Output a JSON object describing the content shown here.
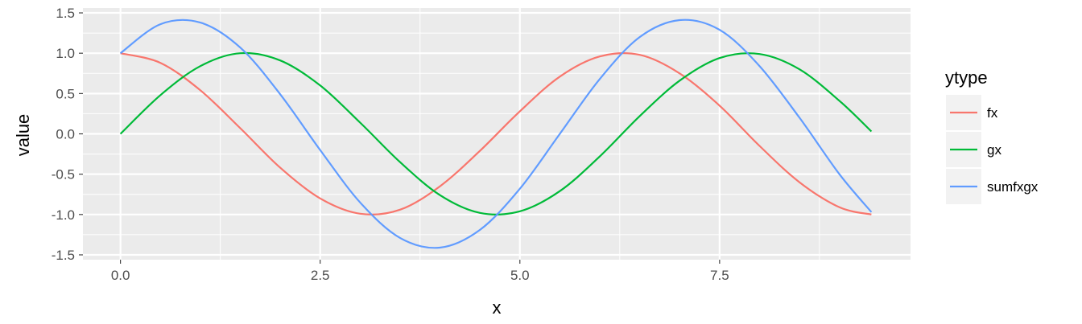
{
  "chart_data": {
    "type": "line",
    "title": "",
    "xlabel": "x",
    "ylabel": "value",
    "xlim": [
      -0.47,
      9.89
    ],
    "ylim": [
      -1.56,
      1.56
    ],
    "x_ticks": [
      0,
      2.5,
      5,
      7.5
    ],
    "x_tick_labels": [
      "0.0",
      "2.5",
      "5.0",
      "7.5"
    ],
    "y_ticks": [
      -1.5,
      -1.0,
      -0.5,
      0.0,
      0.5,
      1.0,
      1.5
    ],
    "y_tick_labels": [
      "-1.5",
      "-1.0",
      "-0.5",
      "0.0",
      "0.5",
      "1.0",
      "1.5"
    ],
    "grid": true,
    "legend": {
      "title": "ytype",
      "position": "right"
    },
    "x": [
      0,
      0.5,
      1.0,
      1.5,
      2.0,
      2.5,
      3.0,
      3.5,
      4.0,
      4.5,
      5.0,
      5.5,
      6.0,
      6.5,
      7.0,
      7.5,
      8.0,
      8.5,
      9.0,
      9.4
    ],
    "series": [
      {
        "name": "fx",
        "color": "#F8766D",
        "values": [
          1.0,
          0.88,
          0.54,
          0.07,
          -0.42,
          -0.8,
          -0.99,
          -0.94,
          -0.65,
          -0.21,
          0.28,
          0.71,
          0.96,
          0.98,
          0.75,
          0.35,
          -0.15,
          -0.6,
          -0.91,
          -1.0
        ]
      },
      {
        "name": "gx",
        "color": "#00BA38",
        "values": [
          0.0,
          0.48,
          0.84,
          1.0,
          0.91,
          0.6,
          0.14,
          -0.35,
          -0.76,
          -0.98,
          -0.96,
          -0.71,
          -0.28,
          0.22,
          0.66,
          0.94,
          0.99,
          0.8,
          0.41,
          0.03
        ]
      },
      {
        "name": "sumfxgx",
        "color": "#619CFF",
        "values": [
          1.0,
          1.36,
          1.38,
          1.07,
          0.49,
          -0.2,
          -0.85,
          -1.29,
          -1.41,
          -1.19,
          -0.68,
          0.0,
          0.68,
          1.2,
          1.41,
          1.29,
          0.84,
          0.2,
          -0.5,
          -0.97
        ]
      }
    ]
  }
}
